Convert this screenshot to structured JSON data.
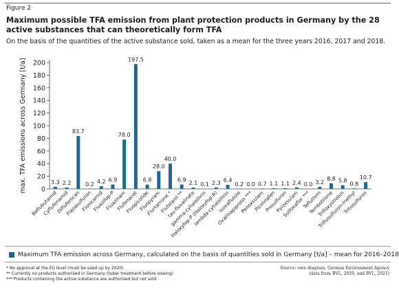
{
  "figure_label": "Figure 2",
  "title": "Maximum possible TFA emission from plant protection products in Germany by the 28 active substances that can theoretically form TFA",
  "subtitle": "On the basis of the quantities of the active substance sold, taken as a mean for the three years 2016, 2017 and 2018.",
  "colors": {
    "bar": "#1f6a8c",
    "axis": "#444444",
    "text": "#1d1d1b"
  },
  "chart_data": {
    "type": "bar",
    "title": "Maximum possible TFA emission from plant protection products in Germany by the 28 active substances that can theoretically form TFA",
    "subtitle": "On the basis of the quantities of the active substance sold, taken as a mean for the three years 2016, 2017 and 2018.",
    "ylabel": "max. TFA emissions across Germany [t/a]",
    "xlabel": "",
    "ylim": [
      0,
      200
    ],
    "yticks": [
      0,
      20,
      40,
      60,
      80,
      100,
      120,
      140,
      160,
      180,
      200
    ],
    "grid": false,
    "legend": "bottom",
    "categories": [
      "Beflubutamid",
      "Cyflufenamid",
      "Diflufenican",
      "Flazasulfuron",
      "Flonicamid",
      "Fluazifop-P",
      "Fluazinam",
      "Flufenacet",
      "Fluopicolide",
      "Fluopyram",
      "Flurtamone *",
      "Flutolanil **",
      "tau-fluvalinate",
      "gamma-cyhalothrin",
      "Haloxyfop-P (Haloxyfop-R)",
      "lambda-cyhalothrin",
      "Isoxaflutole",
      "Oxathiapiprolin ***",
      "Penoxsulam",
      "Picolinafen",
      "Prosulfuron",
      "Pyroxsulam",
      "Sulfoxaflor ***",
      "Tefluthrin",
      "Tembotrione",
      "Trifloxystrobin",
      "Triflusulfuron-methyl",
      "Tritosulfuron"
    ],
    "value_labels": [
      "3.3",
      "2.2",
      "83.7",
      "0.2",
      "4.2",
      "6.9",
      "78.0",
      "197.5",
      "6.8",
      "28.0",
      "40.0",
      "6.9",
      "2.1",
      "0.1",
      "2.3",
      "6.4",
      "0.2",
      "0.0",
      "0.7",
      "1.1",
      "1.1",
      "2.4",
      "0.0",
      "3.2",
      "8.8",
      "5.8",
      "0.8",
      "10.7"
    ],
    "series": [
      {
        "name": "Maximum TFA emission across Germany, calculated on the basis of quantities sold in Germany [t/a] – mean for 2016–2018",
        "values": [
          3.3,
          2.2,
          83.7,
          0.2,
          4.2,
          6.9,
          78.0,
          197.5,
          6.8,
          28.0,
          40.0,
          6.9,
          2.1,
          0.1,
          2.3,
          6.4,
          0.2,
          0.0,
          0.7,
          1.1,
          1.1,
          2.4,
          0.0,
          3.2,
          8.8,
          5.8,
          0.8,
          10.7
        ]
      }
    ]
  },
  "legend": {
    "label": "Maximum TFA emission across Germany, calculated on the basis of quantities sold in Germany [t/a] – mean for 2016–2018"
  },
  "footnotes": [
    "* No approval at the EU level (must be used up by 2020)",
    "** Currently no products authorised in Germany (tuber treatment before sowing)",
    "*** Products containing the active substance are authorised but not sold"
  ],
  "source": {
    "line1": "Source: own diagram, German Environment Agency",
    "line2": "(data from BVL, 2019, and BVL, 2021)"
  }
}
